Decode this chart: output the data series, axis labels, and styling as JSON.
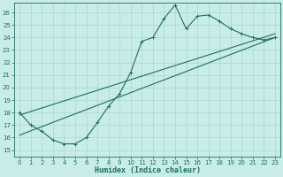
{
  "xlabel": "Humidex (Indice chaleur)",
  "bg_color": "#c8ece8",
  "grid_color": "#a8d8d0",
  "line_color": "#1e6e60",
  "xlim": [
    -0.5,
    23.5
  ],
  "ylim": [
    14.5,
    26.8
  ],
  "yticks": [
    15,
    16,
    17,
    18,
    19,
    20,
    21,
    22,
    23,
    24,
    25,
    26
  ],
  "xticks": [
    0,
    1,
    2,
    3,
    4,
    5,
    6,
    7,
    8,
    9,
    10,
    11,
    12,
    13,
    14,
    15,
    16,
    17,
    18,
    19,
    20,
    21,
    22,
    23
  ],
  "series1_x": [
    0,
    1,
    2,
    3,
    4,
    5,
    6,
    7,
    8,
    9,
    10,
    11,
    12,
    13,
    14,
    15,
    16,
    17,
    18,
    19,
    20,
    21,
    22,
    23
  ],
  "series1_y": [
    18.0,
    17.0,
    16.5,
    15.8,
    15.5,
    15.5,
    16.0,
    17.2,
    18.5,
    19.5,
    21.2,
    23.7,
    24.0,
    25.5,
    26.6,
    24.7,
    25.7,
    25.8,
    25.3,
    24.7,
    24.3,
    24.0,
    23.8,
    24.0
  ],
  "series2_x": [
    0,
    23
  ],
  "series2_y": [
    16.2,
    24.0
  ],
  "series3_x": [
    0,
    23
  ],
  "series3_y": [
    17.8,
    24.3
  ]
}
